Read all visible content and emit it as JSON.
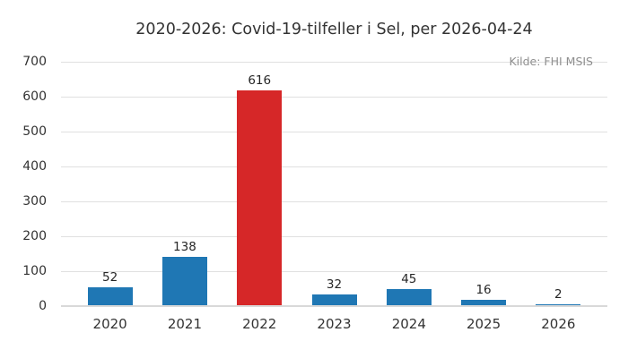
{
  "chart": {
    "title": "2020-2026: Covid-19-tilfeller i Sel, per 2026-04-24",
    "source_note": "Kilde: FHI MSIS"
  },
  "chart_data": {
    "type": "bar",
    "title": "2020-2026: Covid-19-tilfeller i Sel, per 2026-04-24",
    "annotation": "Kilde: FHI MSIS",
    "categories": [
      "2020",
      "2021",
      "2022",
      "2023",
      "2024",
      "2025",
      "2026"
    ],
    "values": [
      52,
      138,
      616,
      32,
      45,
      16,
      2
    ],
    "value_labels_shown": true,
    "highlight_category": "2022",
    "xlabel": "",
    "ylabel": "",
    "ylim": [
      0,
      700
    ],
    "yticks": [
      0,
      100,
      200,
      300,
      400,
      500,
      600,
      700
    ],
    "grid": "horizontal",
    "legend": "none",
    "colors": {
      "bar_default": "#1f77b4",
      "bar_highlight": "#d62728",
      "grid": "#e0e0e0",
      "baseline": "#d9d9d9",
      "text": "#333333",
      "muted_text": "#8f8f8f",
      "background": "#ffffff"
    },
    "bar_colors": [
      "#1f77b4",
      "#1f77b4",
      "#d62728",
      "#1f77b4",
      "#1f77b4",
      "#1f77b4",
      "#1f77b4"
    ]
  }
}
